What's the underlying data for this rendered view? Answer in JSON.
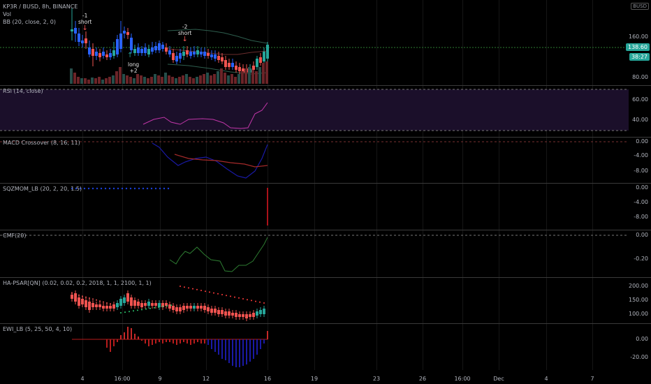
{
  "colors": {
    "up": "#26a69a",
    "down": "#ef5350",
    "blue": "#2962ff",
    "rsi": "#c036a8",
    "rsi_bg": "#1b0f2a",
    "green": "#4caf50",
    "red": "#ef5350",
    "navy": "#1a1aa6",
    "accent_green": "#388e3c"
  },
  "main": {
    "title": "KP3R / BUSD, 8h, BINANCE",
    "vol": "Vol",
    "bb": "BB (20, close, 2, 0)",
    "currency": "BUSD",
    "price_tag": "138.60",
    "timer_tag": "38:27",
    "yticks": [
      "160.00",
      "120.00",
      "80.00"
    ],
    "annotations": [
      {
        "text": "-1\nshort",
        "arrow": "down"
      },
      {
        "text": "long\n+2",
        "arrow": "up"
      },
      {
        "text": "-2\nshort",
        "arrow": "down"
      }
    ]
  },
  "rsi": {
    "label": "RSI (14, close)",
    "yticks": [
      "60.00",
      "40.00"
    ]
  },
  "macd": {
    "label": "MACD Crossover (8, 16, 11)",
    "yticks": [
      "0.00",
      "-4.00",
      "-8.00"
    ]
  },
  "sqz": {
    "label": "SQZMOM_LB (20, 2, 20, 1.5)",
    "yticks": [
      "0.00",
      "-4.00",
      "-8.00"
    ]
  },
  "cmf": {
    "label": "CMF(20)",
    "yticks": [
      "0.00",
      "-0.20"
    ]
  },
  "psar": {
    "label": "HA-PSAR[QN] (0.02, 0.02, 0.2, 2018, 1, 1, 2100, 1, 1)",
    "yticks": [
      "200.00",
      "150.00",
      "100.00"
    ]
  },
  "ewi": {
    "label": "EWI_LB (5, 25, 50, 4, 10)",
    "yticks": [
      "0.00",
      "-20.00"
    ]
  },
  "xaxis": [
    "4",
    "16:00",
    "9",
    "12",
    "16",
    "19",
    "23",
    "26",
    "16:00",
    "Dec",
    "4",
    "7"
  ]
}
